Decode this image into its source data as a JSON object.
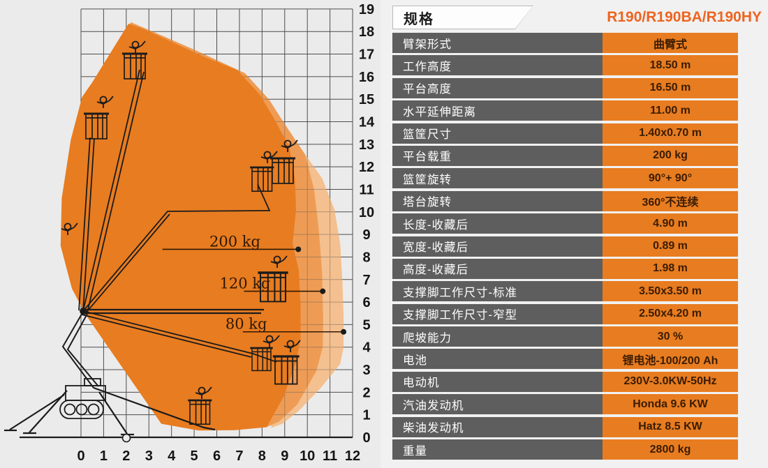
{
  "panel": {
    "title": "规格",
    "model": "R190/R190BA/R190HY"
  },
  "specs": [
    {
      "label": "臂架形式",
      "value": "曲臂式"
    },
    {
      "label": "工作高度",
      "value": "18.50 m"
    },
    {
      "label": "平台高度",
      "value": "16.50 m"
    },
    {
      "label": "水平延伸距离",
      "value": "11.00 m"
    },
    {
      "label": "篮筐尺寸",
      "value": "1.40x0.70 m"
    },
    {
      "label": "平台载重",
      "value": "200 kg"
    },
    {
      "label": "篮筐旋转",
      "value": "90°+ 90°"
    },
    {
      "label": "塔台旋转",
      "value": "360°不连续"
    },
    {
      "label": "长度-收藏后",
      "value": "4.90 m"
    },
    {
      "label": "宽度-收藏后",
      "value": "0.89 m"
    },
    {
      "label": "高度-收藏后",
      "value": "1.98 m"
    },
    {
      "label": "支撑脚工作尺寸-标准",
      "value": "3.50x3.50 m"
    },
    {
      "label": "支撑脚工作尺寸-窄型",
      "value": "2.50x4.20 m"
    },
    {
      "label": "爬坡能力",
      "value": "30 %"
    },
    {
      "label": "电池",
      "value": "锂电池-100/200 Ah"
    },
    {
      "label": "电动机",
      "value": "230V-3.0KW-50Hz"
    },
    {
      "label": "汽油发动机",
      "value": "Honda 9.6 KW"
    },
    {
      "label": "柴油发动机",
      "value": "Hatz  8.5 KW"
    },
    {
      "label": "重量",
      "value": "2800 kg"
    }
  ],
  "chart_data": {
    "type": "area",
    "description": "working-envelope diagram of articulated boom lift, axes in metres",
    "x_axis": {
      "min": 0,
      "max": 12,
      "step": 1
    },
    "y_axis": {
      "min": 0,
      "max": 19,
      "step": 1
    },
    "grid": true,
    "load_lines": [
      {
        "label": "200 kg",
        "y": 8.34,
        "x_start": 3.6,
        "x_end": 9.6,
        "label_x": 6.8
      },
      {
        "label": "120 kg",
        "y": 6.48,
        "x_start": 7.2,
        "x_end": 10.68,
        "label_x": 7.25
      },
      {
        "label": "80 kg",
        "y": 4.68,
        "x_start": 7.15,
        "x_end": 11.6,
        "label_x": 7.3
      }
    ],
    "envelopes": [
      {
        "name": "80kg-zone",
        "color": "#f4c08f",
        "points": [
          [
            9.9,
            12.55
          ],
          [
            10.65,
            11.5
          ],
          [
            11.2,
            10.1
          ],
          [
            11.45,
            8.6
          ],
          [
            11.55,
            6.9
          ],
          [
            11.6,
            5.3
          ],
          [
            11.6,
            4.0
          ],
          [
            11.45,
            3.25
          ],
          [
            10.6,
            2.2
          ],
          [
            9.6,
            1.15
          ],
          [
            8.9,
            0.6
          ],
          [
            8.4,
            0.42
          ],
          [
            8.5,
            1.6
          ],
          [
            9.3,
            9.5
          ]
        ]
      },
      {
        "name": "120kg-zone",
        "color": "#ee9c55",
        "points": [
          [
            2.2,
            18.42
          ],
          [
            3.4,
            17.9
          ],
          [
            5.0,
            17.2
          ],
          [
            7.25,
            16.15
          ],
          [
            8.3,
            15.0
          ],
          [
            9.0,
            13.9
          ],
          [
            9.9,
            12.55
          ],
          [
            10.3,
            11.0
          ],
          [
            10.5,
            9.3
          ],
          [
            10.65,
            7.3
          ],
          [
            10.7,
            5.2
          ],
          [
            10.68,
            4.0
          ],
          [
            10.4,
            2.95
          ],
          [
            9.55,
            1.45
          ],
          [
            8.75,
            0.7
          ],
          [
            8.2,
            0.45
          ],
          [
            6.0,
            1.2
          ],
          [
            2.6,
            13.5
          ],
          [
            1.9,
            17.5
          ]
        ]
      },
      {
        "name": "200kg-zone",
        "color": "#e87c20",
        "points": [
          [
            -0.9,
            8.5
          ],
          [
            -0.85,
            10.6
          ],
          [
            -0.45,
            13.2
          ],
          [
            0.05,
            15.1
          ],
          [
            0.5,
            15.75
          ],
          [
            2.1,
            18.35
          ],
          [
            2.8,
            18.1
          ],
          [
            4.2,
            17.45
          ],
          [
            5.5,
            16.85
          ],
          [
            6.9,
            16.3
          ],
          [
            7.9,
            15.2
          ],
          [
            8.55,
            14.1
          ],
          [
            9.2,
            12.9
          ],
          [
            9.45,
            11.5
          ],
          [
            9.5,
            10.1
          ],
          [
            9.35,
            8.6
          ],
          [
            9.62,
            7.4
          ],
          [
            9.7,
            5.8
          ],
          [
            9.7,
            4.4
          ],
          [
            9.5,
            3.3
          ],
          [
            8.95,
            1.8
          ],
          [
            8.2,
            0.45
          ],
          [
            6.8,
            0.32
          ],
          [
            5.2,
            0.3
          ],
          [
            3.55,
            0.6
          ],
          [
            0.2,
            5.45
          ],
          [
            -0.4,
            6.6
          ]
        ]
      }
    ]
  },
  "colors": {
    "accent_orange": "#e87c20",
    "envelope_medium": "#ee9c55",
    "envelope_light": "#f4c08f",
    "label_bg": "#5e5e5e",
    "label_text": "#ffffff",
    "value_text": "#3a1c02",
    "model_text": "#ed6420",
    "grid_line": "#4d4d4d",
    "chart_bg": "#ebebeb",
    "panel_bg": "#f1f1f1"
  }
}
